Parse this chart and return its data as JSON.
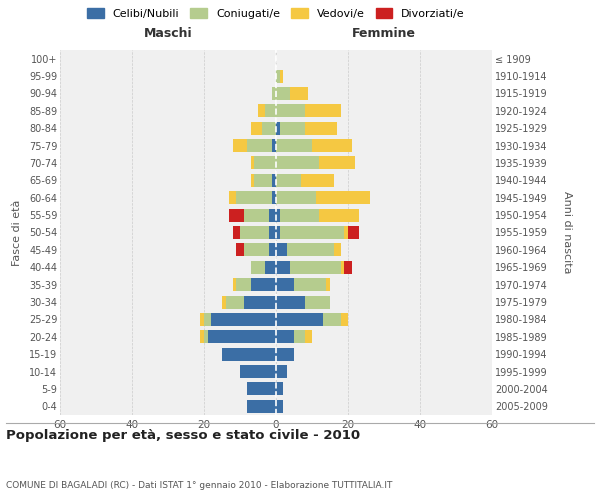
{
  "age_groups": [
    "0-4",
    "5-9",
    "10-14",
    "15-19",
    "20-24",
    "25-29",
    "30-34",
    "35-39",
    "40-44",
    "45-49",
    "50-54",
    "55-59",
    "60-64",
    "65-69",
    "70-74",
    "75-79",
    "80-84",
    "85-89",
    "90-94",
    "95-99",
    "100+"
  ],
  "birth_years": [
    "2005-2009",
    "2000-2004",
    "1995-1999",
    "1990-1994",
    "1985-1989",
    "1980-1984",
    "1975-1979",
    "1970-1974",
    "1965-1969",
    "1960-1964",
    "1955-1959",
    "1950-1954",
    "1945-1949",
    "1940-1944",
    "1935-1939",
    "1930-1934",
    "1925-1929",
    "1920-1924",
    "1915-1919",
    "1910-1914",
    "≤ 1909"
  ],
  "male": {
    "celibi": [
      8,
      8,
      10,
      15,
      19,
      18,
      9,
      7,
      3,
      2,
      2,
      2,
      1,
      1,
      0,
      1,
      0,
      0,
      0,
      0,
      0
    ],
    "coniugati": [
      0,
      0,
      0,
      0,
      1,
      2,
      5,
      4,
      4,
      7,
      8,
      7,
      10,
      5,
      6,
      7,
      4,
      3,
      1,
      0,
      0
    ],
    "vedovi": [
      0,
      0,
      0,
      0,
      1,
      1,
      1,
      1,
      0,
      0,
      0,
      0,
      2,
      1,
      1,
      4,
      3,
      2,
      0,
      0,
      0
    ],
    "divorziati": [
      0,
      0,
      0,
      0,
      0,
      0,
      0,
      0,
      0,
      2,
      2,
      4,
      0,
      0,
      0,
      0,
      0,
      0,
      0,
      0,
      0
    ]
  },
  "female": {
    "nubili": [
      2,
      2,
      3,
      5,
      5,
      13,
      8,
      5,
      4,
      3,
      1,
      1,
      0,
      0,
      0,
      0,
      1,
      0,
      0,
      0,
      0
    ],
    "coniugate": [
      0,
      0,
      0,
      0,
      3,
      5,
      7,
      9,
      14,
      13,
      18,
      11,
      11,
      7,
      12,
      10,
      7,
      8,
      4,
      1,
      0
    ],
    "vedove": [
      0,
      0,
      0,
      0,
      2,
      2,
      0,
      1,
      1,
      2,
      1,
      11,
      15,
      9,
      10,
      11,
      9,
      10,
      5,
      1,
      0
    ],
    "divorziate": [
      0,
      0,
      0,
      0,
      0,
      0,
      0,
      0,
      2,
      0,
      3,
      0,
      0,
      0,
      0,
      0,
      0,
      0,
      0,
      0,
      0
    ]
  },
  "colors": {
    "celibi": "#3b6ea5",
    "coniugati": "#b5cc8e",
    "vedovi": "#f5c842",
    "divorziati": "#cc2020"
  },
  "xlim": 60,
  "title": "Popolazione per età, sesso e stato civile - 2010",
  "subtitle": "COMUNE DI BAGALADI (RC) - Dati ISTAT 1° gennaio 2010 - Elaborazione TUTTITALIA.IT",
  "xlabel_left": "Maschi",
  "xlabel_right": "Femmine",
  "ylabel": "Fasce di età",
  "ylabel_right": "Anni di nascita",
  "background_color": "#f0f0f0",
  "grid_color": "#cccccc"
}
